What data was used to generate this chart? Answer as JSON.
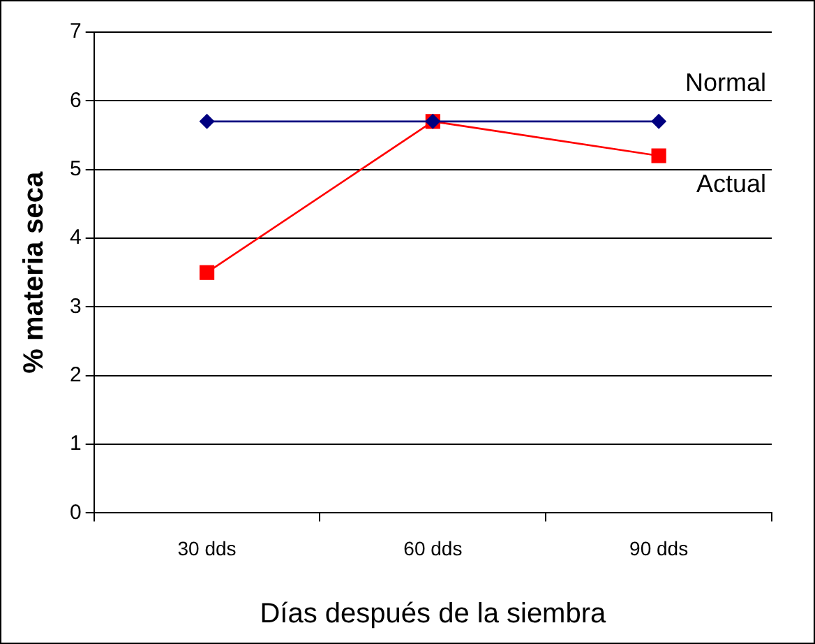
{
  "chart_data": {
    "type": "line",
    "xlabel": "Días después de la siembra",
    "ylabel": "% materia seca",
    "categories": [
      "30 dds",
      "60 dds",
      "90 dds"
    ],
    "series": [
      {
        "name": "Normal",
        "color": "#000080",
        "values": [
          5.7,
          5.7,
          5.7
        ],
        "marker": "diamond"
      },
      {
        "name": "Actual",
        "color": "#ff0000",
        "values": [
          3.5,
          5.7,
          5.2
        ],
        "marker": "square"
      }
    ],
    "ylim": [
      0,
      7
    ],
    "yticks": [
      0,
      1,
      2,
      3,
      4,
      5,
      6,
      7
    ],
    "grid": "y",
    "legend": false
  }
}
